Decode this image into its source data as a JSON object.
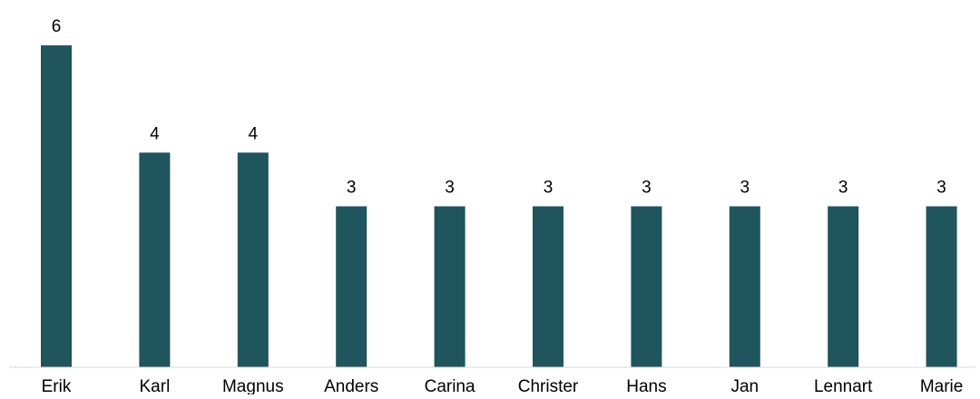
{
  "chart_data": {
    "type": "bar",
    "title": "",
    "xlabel": "",
    "ylabel": "",
    "categories": [
      "Erik",
      "Karl",
      "Magnus",
      "Anders",
      "Carina",
      "Christer",
      "Hans",
      "Jan",
      "Lennart",
      "Marie"
    ],
    "values": [
      6,
      4,
      4,
      3,
      3,
      3,
      3,
      3,
      3,
      3
    ],
    "ylim": [
      0,
      6
    ],
    "grid": false,
    "legend": "none",
    "data_labels": true,
    "colors": {
      "bar": "#1f555d",
      "axis": "#d9d9d9"
    }
  }
}
